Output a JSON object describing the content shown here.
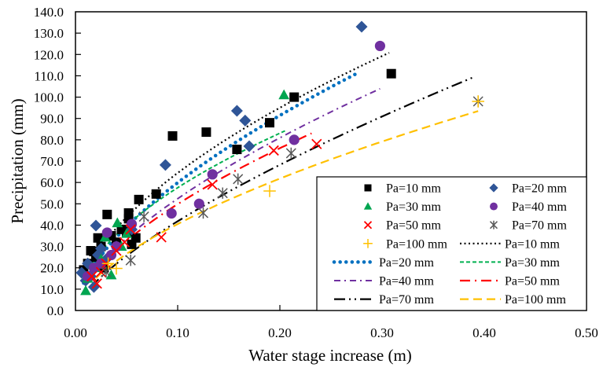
{
  "chart_data": {
    "type": "scatter",
    "title": "",
    "xlabel": "Water stage increase (m)",
    "ylabel": "Precipitation (mm)",
    "xlim": [
      0,
      0.5
    ],
    "ylim": [
      0,
      140
    ],
    "xticks": [
      "0.00",
      "0.10",
      "0.20",
      "0.30",
      "0.40",
      "0.50"
    ],
    "xtick_values": [
      0,
      0.1,
      0.2,
      0.3,
      0.4,
      0.5
    ],
    "yticks": [
      "0.0",
      "10.0",
      "20.0",
      "30.0",
      "40.0",
      "50.0",
      "60.0",
      "70.0",
      "80.0",
      "90.0",
      "100.0",
      "110.0",
      "120.0",
      "130.0",
      "140.0"
    ],
    "ytick_values": [
      0,
      10,
      20,
      30,
      40,
      50,
      60,
      70,
      80,
      90,
      100,
      110,
      120,
      130,
      140
    ],
    "grid": false,
    "legend_position": "bottom-right",
    "scatter_series": [
      {
        "name": "Pa=10 mm",
        "marker": "square",
        "color": "#000000",
        "points": [
          [
            0.008,
            19
          ],
          [
            0.012,
            22
          ],
          [
            0.015,
            28
          ],
          [
            0.018,
            27.6
          ],
          [
            0.02,
            25
          ],
          [
            0.022,
            34
          ],
          [
            0.025,
            30
          ],
          [
            0.028,
            20
          ],
          [
            0.031,
            45
          ],
          [
            0.035,
            35
          ],
          [
            0.04,
            32
          ],
          [
            0.045,
            38
          ],
          [
            0.05,
            36.8
          ],
          [
            0.052,
            43
          ],
          [
            0.052,
            45.7
          ],
          [
            0.055,
            31
          ],
          [
            0.059,
            34
          ],
          [
            0.062,
            52
          ],
          [
            0.079,
            54.6
          ],
          [
            0.095,
            81.8
          ],
          [
            0.128,
            83.6
          ],
          [
            0.158,
            75.5
          ],
          [
            0.19,
            88
          ],
          [
            0.214,
            100
          ],
          [
            0.309,
            111
          ]
        ]
      },
      {
        "name": "Pa=20 mm",
        "marker": "diamond",
        "color": "#2f5597",
        "points": [
          [
            0.006,
            17.7
          ],
          [
            0.01,
            14
          ],
          [
            0.012,
            22
          ],
          [
            0.015,
            16
          ],
          [
            0.018,
            11
          ],
          [
            0.02,
            39.8
          ],
          [
            0.022,
            26
          ],
          [
            0.025,
            29
          ],
          [
            0.03,
            24
          ],
          [
            0.04,
            30
          ],
          [
            0.055,
            38
          ],
          [
            0.088,
            68.2
          ],
          [
            0.158,
            93.6
          ],
          [
            0.166,
            89
          ],
          [
            0.17,
            77
          ],
          [
            0.28,
            133
          ]
        ]
      },
      {
        "name": "Pa=30 mm",
        "marker": "triangle",
        "color": "#00a550",
        "points": [
          [
            0.01,
            9.2
          ],
          [
            0.012,
            15
          ],
          [
            0.02,
            20
          ],
          [
            0.025,
            24
          ],
          [
            0.029,
            34.3
          ],
          [
            0.035,
            16.6
          ],
          [
            0.041,
            41
          ],
          [
            0.045,
            30
          ],
          [
            0.05,
            36
          ],
          [
            0.204,
            101
          ]
        ]
      },
      {
        "name": "Pa=40 mm",
        "marker": "circle",
        "color": "#7030a0",
        "points": [
          [
            0.012,
            16
          ],
          [
            0.018,
            20
          ],
          [
            0.025,
            22
          ],
          [
            0.031,
            36.5
          ],
          [
            0.035,
            26
          ],
          [
            0.04,
            30
          ],
          [
            0.055,
            40.5
          ],
          [
            0.094,
            45.5
          ],
          [
            0.121,
            50
          ],
          [
            0.134,
            63.8
          ],
          [
            0.214,
            80
          ],
          [
            0.298,
            124
          ]
        ]
      },
      {
        "name": "Pa=50 mm",
        "marker": "x",
        "color": "#ff0000",
        "points": [
          [
            0.016,
            16
          ],
          [
            0.021,
            12.6
          ],
          [
            0.025,
            18
          ],
          [
            0.03,
            22
          ],
          [
            0.04,
            28
          ],
          [
            0.048,
            32
          ],
          [
            0.054,
            38
          ],
          [
            0.084,
            34.3
          ],
          [
            0.134,
            59
          ],
          [
            0.194,
            75
          ],
          [
            0.236,
            78
          ]
        ]
      },
      {
        "name": "Pa=70 mm",
        "marker": "asterisk",
        "color": "#595959",
        "points": [
          [
            0.03,
            18
          ],
          [
            0.054,
            23.5
          ],
          [
            0.067,
            44
          ],
          [
            0.125,
            45.7
          ],
          [
            0.144,
            55
          ],
          [
            0.159,
            61.6
          ],
          [
            0.211,
            73.7
          ],
          [
            0.394,
            98
          ]
        ]
      },
      {
        "name": "Pa=100 mm",
        "marker": "plus",
        "color": "#ffc000",
        "points": [
          [
            0.032,
            22
          ],
          [
            0.04,
            19.7
          ],
          [
            0.19,
            56
          ],
          [
            0.394,
            98
          ]
        ]
      }
    ],
    "line_series": [
      {
        "name": "Pa=10 mm",
        "style": "dotted-fine",
        "color": "#000000",
        "a": 234,
        "b": 0.56,
        "x_range": [
          0.008,
          0.307
        ]
      },
      {
        "name": "Pa=20 mm",
        "style": "dotted-round",
        "color": "#0070c0",
        "a": 244,
        "b": 0.61,
        "x_range": [
          0.008,
          0.277
        ]
      },
      {
        "name": "Pa=30 mm",
        "style": "short-dash",
        "color": "#00b050",
        "a": 195,
        "b": 0.53,
        "x_range": [
          0.01,
          0.205
        ]
      },
      {
        "name": "Pa=40 mm",
        "style": "dash-dot",
        "color": "#7030a0",
        "a": 222,
        "b": 0.627,
        "x_range": [
          0.01,
          0.298
        ]
      },
      {
        "name": "Pa=50 mm",
        "style": "long-dash-dot",
        "color": "#ff0000",
        "a": 203,
        "b": 0.61,
        "x_range": [
          0.012,
          0.231
        ]
      },
      {
        "name": "Pa=70 mm",
        "style": "long-dash-dot-dot",
        "color": "#000000",
        "a": 213,
        "b": 0.707,
        "x_range": [
          0.015,
          0.39
        ]
      },
      {
        "name": "Pa=100 mm",
        "style": "dashed",
        "color": "#ffc000",
        "a": 165,
        "b": 0.61,
        "x_range": [
          0.02,
          0.394
        ]
      }
    ],
    "legend": [
      {
        "label": "Pa=10 mm",
        "kind": "scatter",
        "ref": 0
      },
      {
        "label": "Pa=20 mm",
        "kind": "scatter",
        "ref": 1
      },
      {
        "label": "Pa=30 mm",
        "kind": "scatter",
        "ref": 2
      },
      {
        "label": "Pa=40 mm",
        "kind": "scatter",
        "ref": 3
      },
      {
        "label": "Pa=50 mm",
        "kind": "scatter",
        "ref": 4
      },
      {
        "label": "Pa=70 mm",
        "kind": "scatter",
        "ref": 5
      },
      {
        "label": "Pa=100 mm",
        "kind": "scatter",
        "ref": 6
      },
      {
        "label": "Pa=10 mm",
        "kind": "line",
        "ref": 0
      },
      {
        "label": "Pa=20 mm",
        "kind": "line",
        "ref": 1
      },
      {
        "label": "Pa=30 mm",
        "kind": "line",
        "ref": 2
      },
      {
        "label": "Pa=40 mm",
        "kind": "line",
        "ref": 3
      },
      {
        "label": "Pa=50 mm",
        "kind": "line",
        "ref": 4
      },
      {
        "label": "Pa=70 mm",
        "kind": "line",
        "ref": 5
      },
      {
        "label": "Pa=100 mm",
        "kind": "line",
        "ref": 6
      }
    ]
  }
}
